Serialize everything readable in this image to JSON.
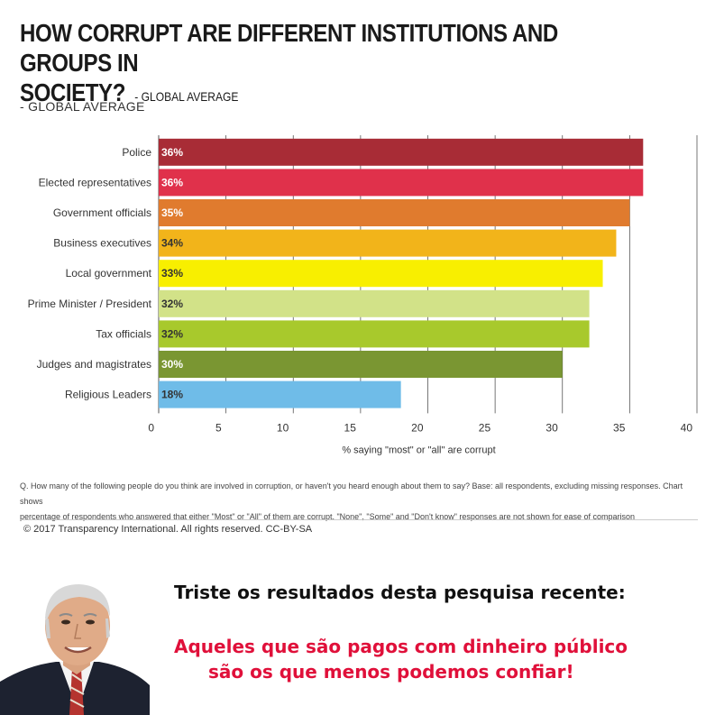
{
  "header": {
    "title_line1": "HOW CORRUPT ARE DIFFERENT INSTITUTIONS AND GROUPS IN",
    "title_line2": "SOCIETY?",
    "title_suffix": "- GLOBAL AVERAGE",
    "subtitle": "- GLOBAL AVERAGE"
  },
  "chart_data": {
    "type": "bar",
    "orientation": "horizontal",
    "categories": [
      "Police",
      "Elected representatives",
      "Government officials",
      "Business executives",
      "Local government",
      "Prime Minister / President",
      "Tax officials",
      "Judges and magistrates",
      "Religious Leaders"
    ],
    "values": [
      36,
      36,
      35,
      34,
      33,
      32,
      32,
      30,
      18
    ],
    "value_labels": [
      "36%",
      "36%",
      "35%",
      "34%",
      "33%",
      "32%",
      "32%",
      "30%",
      "18%"
    ],
    "colors": [
      "#a82c36",
      "#e0314b",
      "#e07b2e",
      "#f2b41a",
      "#f8ef00",
      "#d2e288",
      "#a8c92c",
      "#7a9632",
      "#6fbce8"
    ],
    "label_colors": [
      "#ffffff",
      "#ffffff",
      "#ffffff",
      "#333333",
      "#333333",
      "#333333",
      "#333333",
      "#ffffff",
      "#333333"
    ],
    "xlim": [
      0,
      40
    ],
    "xticks": [
      0,
      5,
      10,
      15,
      20,
      25,
      30,
      35,
      40
    ],
    "xlabel": "% saying \"most\" or \"all\" are corrupt",
    "grid": "vertical"
  },
  "footnote": {
    "line1": "Q. How many of the following people do you think are involved in corruption, or haven't you heard enough about them to say? Base: all respondents, excluding missing responses. Chart shows",
    "line2": "percentage of respondents who answered that either \"Most\" or \"All\" of them are corrupt. \"None\", \"Some\" and \"Don't know\" responses are not shown for ease of comparison"
  },
  "copyright": "© 2017 Transparency International. All rights reserved. CC-BY-SA",
  "caption": {
    "line1": "Triste os resultados desta pesquisa recente:",
    "line2": "Aqueles que são pagos com dinheiro público",
    "line3": "são os que menos podemos confiar!"
  },
  "colors": {
    "caption_accent": "#e0103a"
  }
}
